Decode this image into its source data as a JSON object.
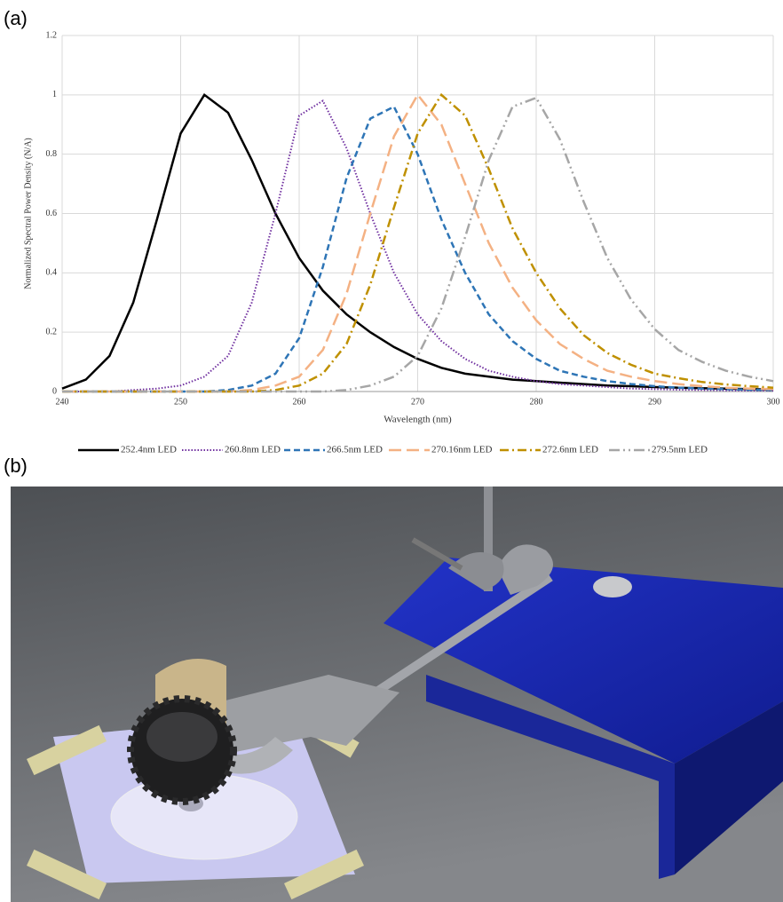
{
  "labels": {
    "a": "(a)",
    "b": "(b)"
  },
  "chart_data": {
    "type": "line",
    "x_label": "Wavelength (nm)",
    "y_label": "Normalized Spectral Power Density (N/A)",
    "x": [
      240,
      242,
      244,
      246,
      248,
      250,
      252,
      254,
      256,
      258,
      260,
      262,
      264,
      266,
      268,
      270,
      272,
      274,
      276,
      278,
      280,
      282,
      284,
      286,
      288,
      290,
      292,
      294,
      296,
      298,
      300
    ],
    "xlim": [
      240,
      300
    ],
    "xticks": [
      240,
      250,
      260,
      270,
      280,
      290,
      300
    ],
    "ylim": [
      0,
      1.2
    ],
    "yticks": [
      0,
      0.2,
      0.4,
      0.6,
      0.8,
      1,
      1.2
    ],
    "grid": true,
    "legend": "bottom",
    "series": [
      {
        "name": "252.4nm LED",
        "color": "#000000",
        "dash": "none",
        "width": 2.5,
        "values": [
          0.01,
          0.04,
          0.12,
          0.3,
          0.58,
          0.87,
          1.0,
          0.94,
          0.78,
          0.6,
          0.45,
          0.34,
          0.26,
          0.2,
          0.15,
          0.11,
          0.08,
          0.06,
          0.05,
          0.04,
          0.035,
          0.03,
          0.025,
          0.02,
          0.018,
          0.015,
          0.013,
          0.011,
          0.01,
          0.008,
          0.007
        ]
      },
      {
        "name": "260.8nm LED",
        "color": "#7030a0",
        "dash": "1.5,2",
        "width": 2,
        "values": [
          0,
          0,
          0,
          0.005,
          0.01,
          0.02,
          0.05,
          0.12,
          0.3,
          0.6,
          0.93,
          0.98,
          0.82,
          0.6,
          0.4,
          0.26,
          0.17,
          0.11,
          0.07,
          0.05,
          0.035,
          0.025,
          0.02,
          0.015,
          0.01,
          0.008,
          0.006,
          0.005,
          0.004,
          0.003,
          0.003
        ]
      },
      {
        "name": "266.5nm LED",
        "color": "#2e75b6",
        "dash": "7,4",
        "width": 2.5,
        "values": [
          0,
          0,
          0,
          0,
          0,
          0,
          0,
          0.005,
          0.02,
          0.06,
          0.18,
          0.42,
          0.72,
          0.92,
          0.96,
          0.8,
          0.58,
          0.4,
          0.26,
          0.17,
          0.11,
          0.07,
          0.05,
          0.035,
          0.025,
          0.018,
          0.013,
          0.01,
          0.008,
          0.006,
          0.005
        ]
      },
      {
        "name": "270.16nm LED",
        "color": "#f4b183",
        "dash": "14,6",
        "width": 2.5,
        "values": [
          0,
          0,
          0,
          0,
          0,
          0,
          0,
          0,
          0.005,
          0.02,
          0.05,
          0.14,
          0.33,
          0.6,
          0.86,
          1.0,
          0.9,
          0.7,
          0.5,
          0.35,
          0.24,
          0.16,
          0.11,
          0.07,
          0.05,
          0.035,
          0.025,
          0.018,
          0.013,
          0.01,
          0.008
        ]
      },
      {
        "name": "272.6nm LED",
        "color": "#bf9000",
        "dash": "10,4,2,4",
        "width": 2.5,
        "values": [
          0,
          0,
          0,
          0,
          0,
          0,
          0,
          0,
          0,
          0.005,
          0.02,
          0.06,
          0.16,
          0.36,
          0.62,
          0.87,
          1.0,
          0.93,
          0.75,
          0.55,
          0.4,
          0.28,
          0.19,
          0.13,
          0.09,
          0.06,
          0.045,
          0.032,
          0.024,
          0.018,
          0.013
        ]
      },
      {
        "name": "279.5nm LED",
        "color": "#a6a6a6",
        "dash": "12,4,2,4,2,4",
        "width": 2.5,
        "values": [
          0,
          0,
          0,
          0,
          0,
          0,
          0,
          0,
          0,
          0,
          0,
          0,
          0.005,
          0.02,
          0.05,
          0.12,
          0.28,
          0.52,
          0.78,
          0.96,
          0.99,
          0.85,
          0.64,
          0.45,
          0.31,
          0.21,
          0.14,
          0.1,
          0.07,
          0.05,
          0.035
        ]
      }
    ]
  }
}
